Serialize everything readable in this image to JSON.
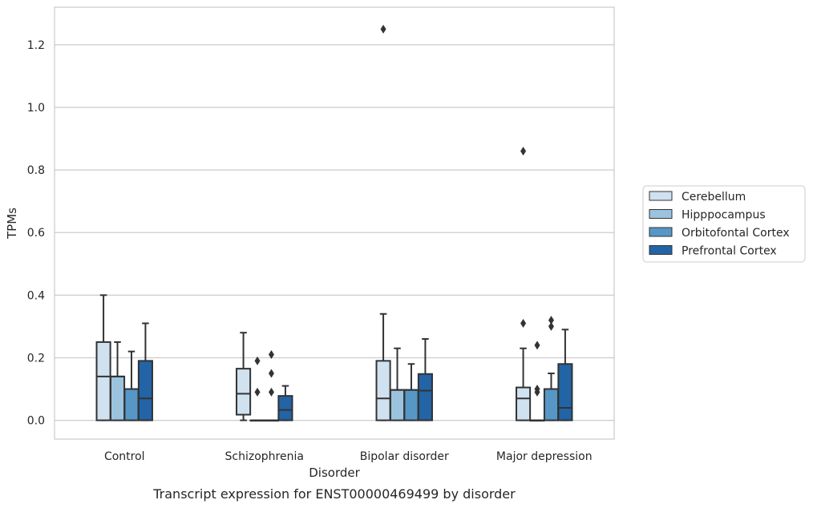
{
  "chart_data": {
    "type": "box",
    "xlabel": "Disorder",
    "ylabel": "TPMs",
    "caption": "Transcript expression for ENST00000469499 by disorder",
    "ylim": [
      -0.06,
      1.32
    ],
    "yticks": [
      0.0,
      0.2,
      0.4,
      0.6,
      0.8,
      1.0,
      1.2
    ],
    "ytick_labels": [
      "0.0",
      "0.2",
      "0.4",
      "0.6",
      "0.8",
      "1.0",
      "1.2"
    ],
    "grid": "horizontal",
    "legend_placement": "right",
    "categories": [
      "Control",
      "Schizophrenia",
      "Bipolar disorder",
      "Major depression"
    ],
    "series": [
      {
        "name": "Cerebellum",
        "color": "#d0e1f0",
        "boxes": [
          {
            "min": 0.0,
            "q1": 0.0,
            "median": 0.14,
            "q3": 0.25,
            "max": 0.4,
            "outliers": []
          },
          {
            "min": 0.0,
            "q1": 0.018,
            "median": 0.085,
            "q3": 0.165,
            "max": 0.28,
            "outliers": []
          },
          {
            "min": 0.0,
            "q1": 0.0,
            "median": 0.07,
            "q3": 0.19,
            "max": 0.34,
            "outliers": [
              1.25
            ]
          },
          {
            "min": 0.0,
            "q1": 0.0,
            "median": 0.07,
            "q3": 0.105,
            "max": 0.23,
            "outliers": [
              0.31,
              0.86
            ]
          }
        ]
      },
      {
        "name": "Hipppocampus",
        "color": "#9cc3de",
        "boxes": [
          {
            "min": 0.0,
            "q1": 0.0,
            "median": 0.14,
            "q3": 0.14,
            "max": 0.25,
            "outliers": []
          },
          {
            "min": 0.0,
            "q1": 0.0,
            "median": 0.0,
            "q3": 0.0,
            "max": 0.0,
            "outliers": [
              0.09,
              0.19
            ]
          },
          {
            "min": 0.0,
            "q1": 0.0,
            "median": 0.097,
            "q3": 0.097,
            "max": 0.23,
            "outliers": []
          },
          {
            "min": 0.0,
            "q1": 0.0,
            "median": 0.0,
            "q3": 0.0,
            "max": 0.0,
            "outliers": [
              0.09,
              0.1,
              0.24
            ]
          }
        ]
      },
      {
        "name": "Orbitofontal Cortex",
        "color": "#5797c6",
        "boxes": [
          {
            "min": 0.0,
            "q1": 0.0,
            "median": 0.1,
            "q3": 0.1,
            "max": 0.22,
            "outliers": []
          },
          {
            "min": 0.0,
            "q1": 0.0,
            "median": 0.0,
            "q3": 0.0,
            "max": 0.0,
            "outliers": [
              0.09,
              0.15,
              0.21
            ]
          },
          {
            "min": 0.0,
            "q1": 0.0,
            "median": 0.097,
            "q3": 0.097,
            "max": 0.18,
            "outliers": []
          },
          {
            "min": 0.0,
            "q1": 0.0,
            "median": 0.1,
            "q3": 0.1,
            "max": 0.15,
            "outliers": [
              0.3,
              0.32
            ]
          }
        ]
      },
      {
        "name": "Prefrontal Cortex",
        "color": "#2264a5",
        "boxes": [
          {
            "min": 0.0,
            "q1": 0.0,
            "median": 0.07,
            "q3": 0.19,
            "max": 0.31,
            "outliers": []
          },
          {
            "min": 0.0,
            "q1": 0.0,
            "median": 0.033,
            "q3": 0.078,
            "max": 0.11,
            "outliers": []
          },
          {
            "min": 0.0,
            "q1": 0.0,
            "median": 0.095,
            "q3": 0.148,
            "max": 0.26,
            "outliers": []
          },
          {
            "min": 0.0,
            "q1": 0.0,
            "median": 0.04,
            "q3": 0.18,
            "max": 0.29,
            "outliers": []
          }
        ]
      }
    ]
  }
}
